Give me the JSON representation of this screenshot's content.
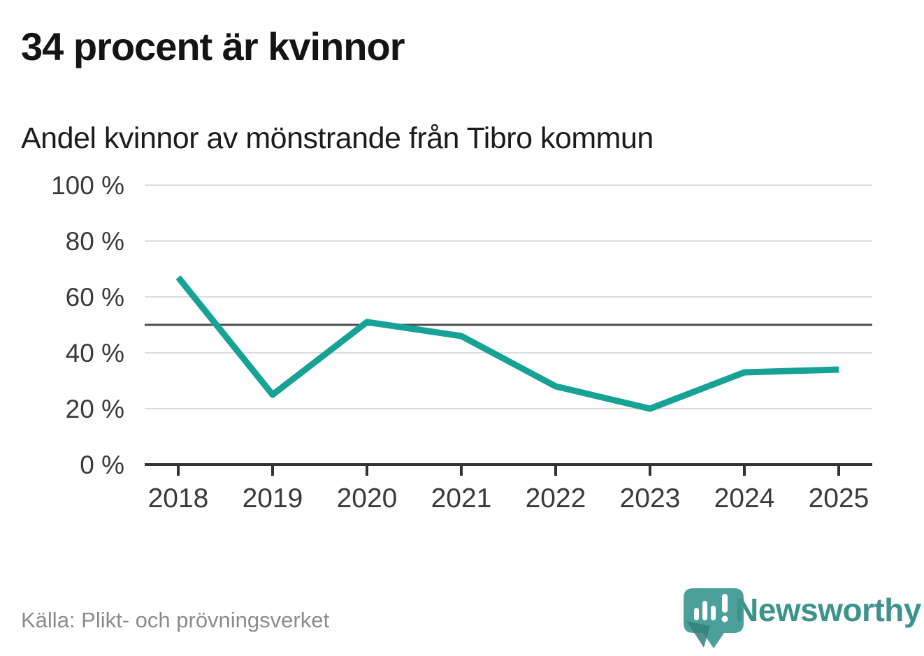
{
  "header": {
    "title": "34 procent är kvinnor",
    "subtitle": "Andel kvinnor av mönstrande från Tibro kommun"
  },
  "chart_data": {
    "type": "line",
    "title": "34 procent är kvinnor",
    "subtitle": "Andel kvinnor av mönstrande från Tibro kommun",
    "x": [
      2018,
      2019,
      2020,
      2021,
      2022,
      2023,
      2024,
      2025
    ],
    "xtick_labels": [
      "2018",
      "2019",
      "2020",
      "2021",
      "2022",
      "2023",
      "2024",
      "2025"
    ],
    "values": [
      67,
      25,
      51,
      46,
      28,
      20,
      33,
      34
    ],
    "unit": "%",
    "ylim": [
      0,
      100
    ],
    "yticks": [
      0,
      20,
      40,
      60,
      80,
      100
    ],
    "ytick_labels": [
      "0 %",
      "20 %",
      "40 %",
      "60 %",
      "80 %",
      "100 %"
    ],
    "reference_line": 50,
    "grid": "horizontal",
    "legend": "none",
    "line_color": "#16a295",
    "gridline_color": "#dcdcdc",
    "reference_line_color": "#4d4d4d",
    "axis_color": "#333333",
    "tick_label_color": "#3a3a3a"
  },
  "footer": {
    "source": "Källa: Plikt- och prövningsverket",
    "brand": "Newsworthy",
    "brand_color": "#3d938c",
    "logo_bubble_color": "#4ba19a",
    "logo_shadow_color": "#30817a"
  }
}
